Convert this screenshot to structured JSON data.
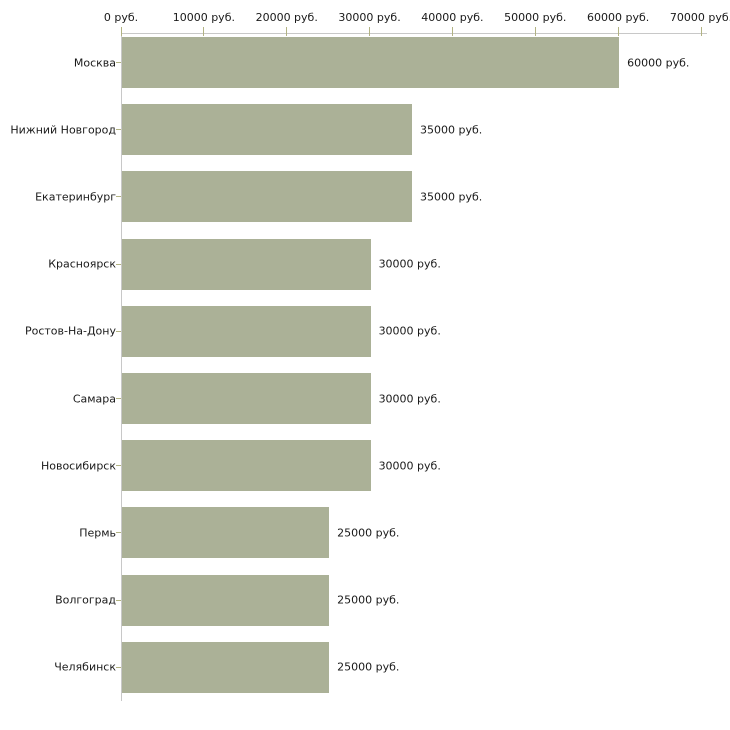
{
  "chart_data": {
    "type": "bar",
    "orientation": "horizontal",
    "title": "",
    "xlabel": "",
    "ylabel": "",
    "grid": "off",
    "legend": "none",
    "categories": [
      "Москва",
      "Нижний Новгород",
      "Екатеринбург",
      "Красноярск",
      "Ростов-На-Дону",
      "Самара",
      "Новосибирск",
      "Пермь",
      "Волгоград",
      "Челябинск"
    ],
    "values": [
      60000,
      35000,
      35000,
      30000,
      30000,
      30000,
      30000,
      25000,
      25000,
      25000
    ],
    "value_labels": [
      "60000 руб.",
      "35000 руб.",
      "35000 руб.",
      "30000 руб.",
      "30000 руб.",
      "30000 руб.",
      "30000 руб.",
      "25000 руб.",
      "25000 руб.",
      "25000 руб."
    ],
    "x_ticks": [
      0,
      10000,
      20000,
      30000,
      40000,
      50000,
      60000,
      70000
    ],
    "x_tick_labels": [
      "0 руб.",
      "10000 руб.",
      "20000 руб.",
      "30000 руб.",
      "40000 руб.",
      "50000 руб.",
      "60000 руб.",
      "70000 руб."
    ],
    "xlim": [
      0,
      70000
    ],
    "unit_suffix": " руб.",
    "colors": {
      "bar": "#abb197",
      "axis_line": "#c8c8c8",
      "tick_mark": "#b2b383",
      "text": "#1a1a1a",
      "background": "#ffffff"
    }
  }
}
